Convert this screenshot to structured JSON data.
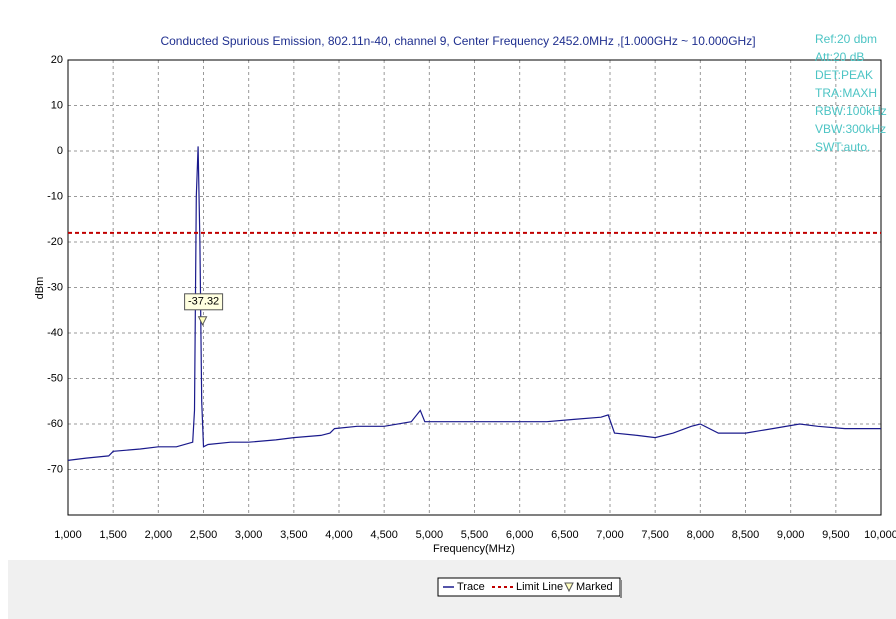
{
  "chart_data": {
    "type": "line",
    "title": "Conducted Spurious Emission, 802.11n-40, channel 9, Center Frequency 2452.0MHz ,[1.000GHz ~ 10.000GHz]",
    "x_label": "Frequency(MHz)",
    "y_label": "dBm",
    "xlim": [
      1000,
      10000
    ],
    "ylim": [
      -80,
      20
    ],
    "xticks": [
      {
        "value": 1000,
        "label": "1,000"
      },
      {
        "value": 1500,
        "label": "1,500"
      },
      {
        "value": 2000,
        "label": "2,000"
      },
      {
        "value": 2500,
        "label": "2,500"
      },
      {
        "value": 3000,
        "label": "3,000"
      },
      {
        "value": 3500,
        "label": "3,500"
      },
      {
        "value": 4000,
        "label": "4,000"
      },
      {
        "value": 4500,
        "label": "4,500"
      },
      {
        "value": 5000,
        "label": "5,000"
      },
      {
        "value": 5500,
        "label": "5,500"
      },
      {
        "value": 6000,
        "label": "6,000"
      },
      {
        "value": 6500,
        "label": "6,500"
      },
      {
        "value": 7000,
        "label": "7,000"
      },
      {
        "value": 7500,
        "label": "7,500"
      },
      {
        "value": 8000,
        "label": "8,000"
      },
      {
        "value": 8500,
        "label": "8,500"
      },
      {
        "value": 9000,
        "label": "9,000"
      },
      {
        "value": 9500,
        "label": "9,500"
      },
      {
        "value": 10000,
        "label": "10,000"
      }
    ],
    "yticks": [
      20,
      10,
      0,
      -10,
      -20,
      -30,
      -40,
      -50,
      -60,
      -70
    ],
    "grid": true,
    "series": [
      {
        "name": "Trace",
        "color": "#1a1a8c",
        "x": [
          1000,
          1200,
          1450,
          1500,
          1800,
          2000,
          2200,
          2380,
          2400,
          2420,
          2440,
          2460,
          2480,
          2500,
          2550,
          2800,
          3000,
          3300,
          3500,
          3800,
          3900,
          3950,
          4200,
          4500,
          4800,
          4900,
          4950,
          5200,
          5500,
          5800,
          6000,
          6300,
          6600,
          6900,
          6980,
          7050,
          7300,
          7500,
          7700,
          7900,
          8000,
          8200,
          8500,
          8800,
          9100,
          9300,
          9600,
          10000
        ],
        "values": [
          -68,
          -67.5,
          -67,
          -66,
          -65.5,
          -65,
          -65,
          -64,
          -57,
          -10,
          1,
          -20,
          -55,
          -65,
          -64.5,
          -64,
          -64,
          -63.5,
          -63,
          -62.5,
          -62,
          -61,
          -60.5,
          -60.5,
          -59.5,
          -57,
          -59.5,
          -59.5,
          -59.5,
          -59.5,
          -59.5,
          -59.5,
          -59,
          -58.5,
          -58,
          -62,
          -62.5,
          -63,
          -62,
          -60.5,
          -60,
          -62,
          -62,
          -61,
          -60,
          -60.5,
          -61,
          -61
        ]
      }
    ],
    "limit_line": {
      "name": "Limit Line",
      "value": -18,
      "color": "#c00000"
    },
    "marker": {
      "name": "Marked",
      "x": 2490,
      "value": -37.32
    },
    "settings": [
      "Ref:20 dbm",
      "Att:20 dB",
      "DET:PEAK",
      "TRA:MAXH",
      "RBW:100kHz",
      "VBW:300kHz",
      "SWT:auto."
    ]
  }
}
